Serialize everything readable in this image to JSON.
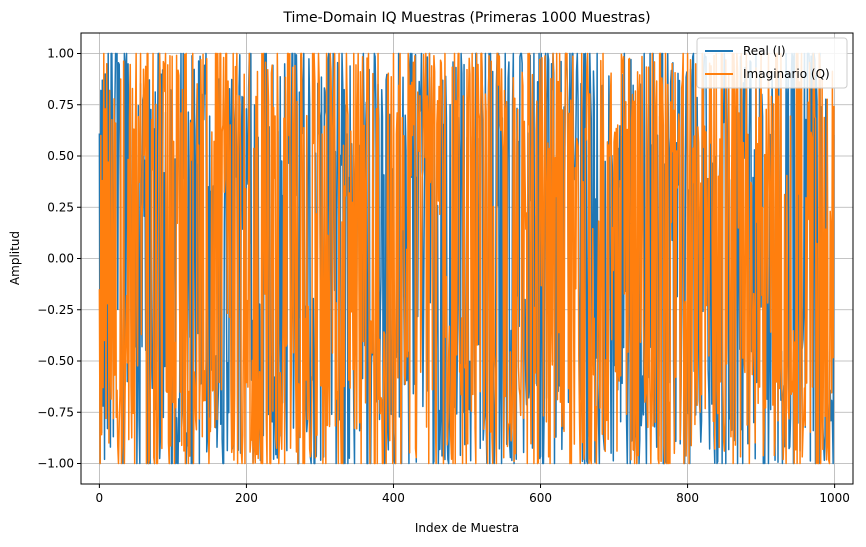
{
  "chart_data": {
    "type": "line",
    "title": "Time-Domain IQ Muestras (Primeras 1000 Muestras)",
    "xlabel": "Index de Muestra",
    "ylabel": "Amplitud",
    "xlim": [
      -25,
      1025
    ],
    "ylim": [
      -1.1,
      1.1
    ],
    "xticks": [
      0,
      200,
      400,
      600,
      800,
      1000
    ],
    "yticks": [
      -1.0,
      -0.75,
      -0.5,
      -0.25,
      0.0,
      0.25,
      0.5,
      0.75,
      1.0
    ],
    "xtick_labels": [
      "0",
      "200",
      "400",
      "600",
      "800",
      "1000"
    ],
    "ytick_labels": [
      "−1.00",
      "−0.75",
      "−0.50",
      "−0.25",
      "0.00",
      "0.25",
      "0.50",
      "0.75",
      "1.00"
    ],
    "grid": true,
    "legend_position": "top-right",
    "num_samples": 1000,
    "series": [
      {
        "name": "Real (I)",
        "color": "#1f77b4",
        "preview_values": [
          0.61,
          -1.0,
          0.82,
          -0.85,
          0.87,
          -0.72,
          0.42,
          -0.98,
          0.9,
          -0.51,
          0.75,
          -0.83,
          1.0,
          -0.3,
          0.55,
          -0.92
        ]
      },
      {
        "name": "Imaginario (Q)",
        "color": "#ff7f0e",
        "preview_values": [
          -0.15,
          -1.0,
          0.6,
          -0.86,
          0.38,
          -0.63,
          1.0,
          -0.4,
          0.73,
          -0.78,
          0.95,
          -0.22,
          0.47,
          -0.9,
          0.82,
          -0.55
        ]
      }
    ]
  }
}
